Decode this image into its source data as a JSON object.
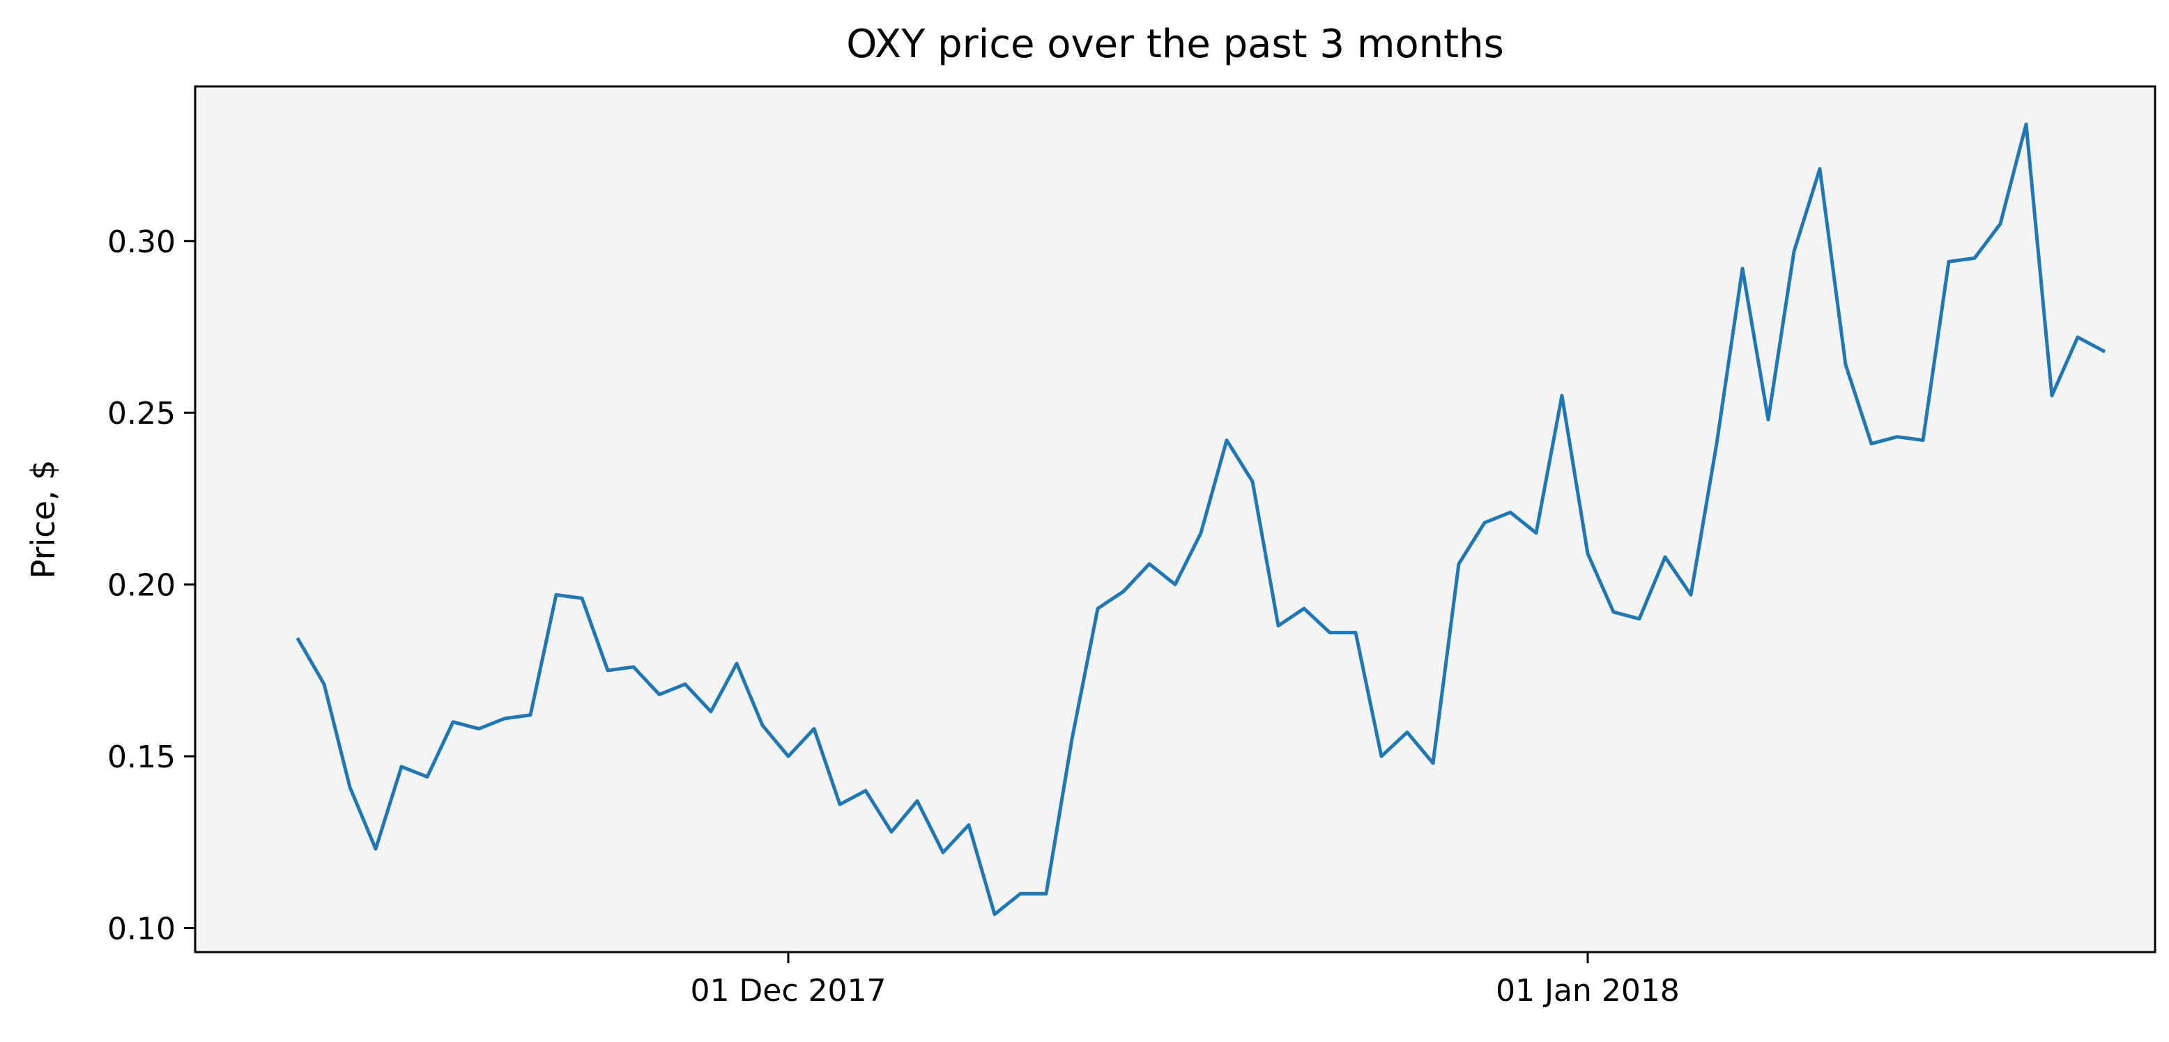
{
  "chart_data": {
    "type": "line",
    "title": "OXY price over the past 3 months",
    "xlabel": "",
    "ylabel": "Price, $",
    "ylim": [
      0.093,
      0.345
    ],
    "xlim": [
      "2017-11-08",
      "2018-01-23"
    ],
    "x_ticks": [
      {
        "date": "2017-12-01",
        "label": "01 Dec 2017"
      },
      {
        "date": "2018-01-01",
        "label": "01 Jan 2018"
      }
    ],
    "y_ticks": [
      {
        "value": 0.1,
        "label": "0.10"
      },
      {
        "value": 0.15,
        "label": "0.15"
      },
      {
        "value": 0.2,
        "label": "0.20"
      },
      {
        "value": 0.25,
        "label": "0.25"
      },
      {
        "value": 0.3,
        "label": "0.30"
      }
    ],
    "grid": false,
    "colors": {
      "plot_background": "#f4f4f4",
      "line": "#1f77b4"
    },
    "series": [
      {
        "x": [
          "2017-11-12",
          "2017-11-13",
          "2017-11-14",
          "2017-11-15",
          "2017-11-16",
          "2017-11-17",
          "2017-11-18",
          "2017-11-19",
          "2017-11-20",
          "2017-11-21",
          "2017-11-22",
          "2017-11-23",
          "2017-11-24",
          "2017-11-25",
          "2017-11-26",
          "2017-11-27",
          "2017-11-28",
          "2017-11-29",
          "2017-11-30",
          "2017-12-01",
          "2017-12-02",
          "2017-12-03",
          "2017-12-04",
          "2017-12-05",
          "2017-12-06",
          "2017-12-07",
          "2017-12-08",
          "2017-12-09",
          "2017-12-10",
          "2017-12-11",
          "2017-12-12",
          "2017-12-13",
          "2017-12-14",
          "2017-12-15",
          "2017-12-16",
          "2017-12-17",
          "2017-12-18",
          "2017-12-19",
          "2017-12-20",
          "2017-12-21",
          "2017-12-22",
          "2017-12-23",
          "2017-12-24",
          "2017-12-25",
          "2017-12-26",
          "2017-12-27",
          "2017-12-28",
          "2017-12-29",
          "2017-12-30",
          "2017-12-31",
          "2018-01-01",
          "2018-01-02",
          "2018-01-03",
          "2018-01-04",
          "2018-01-05",
          "2018-01-06",
          "2018-01-07",
          "2018-01-08",
          "2018-01-09",
          "2018-01-10",
          "2018-01-11",
          "2018-01-12",
          "2018-01-13",
          "2018-01-14",
          "2018-01-15",
          "2018-01-16",
          "2018-01-17",
          "2018-01-18",
          "2018-01-19",
          "2018-01-20",
          "2018-01-21"
        ],
        "values": [
          0.184,
          0.171,
          0.141,
          0.123,
          0.147,
          0.144,
          0.16,
          0.158,
          0.161,
          0.162,
          0.197,
          0.196,
          0.175,
          0.176,
          0.168,
          0.171,
          0.163,
          0.177,
          0.159,
          0.15,
          0.158,
          0.136,
          0.14,
          0.128,
          0.137,
          0.122,
          0.13,
          0.104,
          0.11,
          0.11,
          0.155,
          0.193,
          0.198,
          0.206,
          0.2,
          0.215,
          0.242,
          0.23,
          0.188,
          0.193,
          0.186,
          0.186,
          0.15,
          0.157,
          0.148,
          0.206,
          0.218,
          0.221,
          0.215,
          0.255,
          0.209,
          0.192,
          0.19,
          0.208,
          0.197,
          0.241,
          0.292,
          0.248,
          0.297,
          0.321,
          0.264,
          0.241,
          0.243,
          0.242,
          0.294,
          0.295,
          0.305,
          0.334,
          0.255,
          0.272,
          0.268
        ]
      }
    ]
  }
}
